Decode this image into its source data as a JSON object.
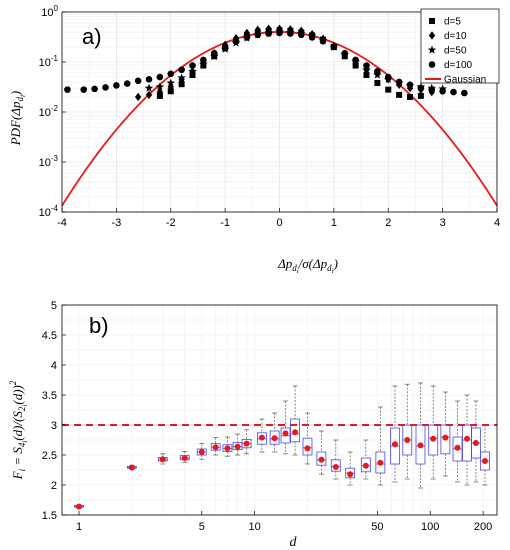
{
  "chart_data": [
    {
      "type": "scatter",
      "panel_label": "a)",
      "xlabel": "Δp_{d_i}/σ(Δp_{d_i})",
      "ylabel": "PDF(Δp_{d_i})",
      "xlim": [
        -4,
        4
      ],
      "ylim": [
        0.0001,
        1
      ],
      "yscale": "log",
      "grid": true,
      "legend_position": "top-right",
      "x_ticks": [
        "-4",
        "-3",
        "-2",
        "-1",
        "0",
        "1",
        "2",
        "3",
        "4"
      ],
      "y_ticks": [
        "10^0",
        "10^-1",
        "10^-2",
        "10^-3",
        "10^-4"
      ],
      "series": [
        {
          "name": "d=5",
          "marker": "square",
          "x": [
            -2.2,
            -2.0,
            -1.8,
            -1.6,
            -1.4,
            -1.2,
            -1.0,
            -0.8,
            -0.6,
            -0.4,
            -0.2,
            0.0,
            0.2,
            0.4,
            0.6,
            0.8,
            1.0,
            1.2,
            1.4,
            1.6,
            1.8,
            2.0,
            2.2,
            2.4,
            2.6
          ],
          "y": [
            0.021,
            0.026,
            0.036,
            0.055,
            0.085,
            0.13,
            0.19,
            0.27,
            0.33,
            0.39,
            0.42,
            0.43,
            0.42,
            0.39,
            0.34,
            0.28,
            0.2,
            0.13,
            0.085,
            0.055,
            0.038,
            0.028,
            0.022,
            0.02,
            0.021
          ]
        },
        {
          "name": "d=10",
          "marker": "diamond",
          "x": [
            -2.6,
            -2.4,
            -2.2,
            -2.0,
            -1.8,
            -1.6,
            -1.4,
            -1.2,
            -1.0,
            -0.8,
            -0.6,
            -0.4,
            -0.2,
            0.0,
            0.2,
            0.4,
            0.6,
            0.8,
            1.0,
            1.2,
            1.4,
            1.6,
            1.8,
            2.0,
            2.2,
            2.4,
            2.6,
            2.8
          ],
          "y": [
            0.02,
            0.022,
            0.025,
            0.032,
            0.045,
            0.065,
            0.1,
            0.15,
            0.22,
            0.3,
            0.38,
            0.44,
            0.46,
            0.46,
            0.45,
            0.42,
            0.36,
            0.29,
            0.21,
            0.14,
            0.095,
            0.07,
            0.06,
            0.045,
            0.035,
            0.03,
            0.028,
            0.025
          ]
        },
        {
          "name": "d=50",
          "marker": "star",
          "x": [
            -2.4,
            -2.2,
            -2.0,
            -1.8,
            -1.6,
            -1.4,
            -1.2,
            -1.0,
            -0.8,
            -0.6,
            -0.4,
            -0.2,
            0.0,
            0.2,
            0.4,
            0.6,
            0.8,
            1.0,
            1.2,
            1.4,
            1.6,
            1.8,
            2.0,
            2.2,
            2.4,
            2.6,
            2.8,
            3.0
          ],
          "y": [
            0.03,
            0.032,
            0.038,
            0.048,
            0.065,
            0.09,
            0.13,
            0.18,
            0.24,
            0.3,
            0.35,
            0.38,
            0.4,
            0.39,
            0.37,
            0.33,
            0.27,
            0.2,
            0.14,
            0.1,
            0.07,
            0.055,
            0.045,
            0.038,
            0.034,
            0.032,
            0.03,
            0.029
          ]
        },
        {
          "name": "d=100",
          "marker": "circle",
          "x": [
            -3.9,
            -3.6,
            -3.4,
            -3.2,
            -3.0,
            -2.8,
            -2.6,
            -2.4,
            -2.2,
            -2.0,
            -1.8,
            -1.6,
            -1.4,
            -1.2,
            -1.0,
            -0.8,
            -0.6,
            -0.4,
            -0.2,
            0.0,
            0.2,
            0.4,
            0.6,
            0.8,
            1.0,
            1.2,
            1.4,
            1.6,
            1.8,
            2.0,
            2.2,
            2.4,
            2.6,
            2.8,
            3.0,
            3.2,
            3.4
          ],
          "y": [
            0.028,
            0.028,
            0.029,
            0.031,
            0.034,
            0.037,
            0.042,
            0.045,
            0.05,
            0.058,
            0.07,
            0.085,
            0.11,
            0.15,
            0.2,
            0.26,
            0.31,
            0.35,
            0.37,
            0.38,
            0.37,
            0.35,
            0.31,
            0.26,
            0.2,
            0.15,
            0.11,
            0.085,
            0.065,
            0.05,
            0.04,
            0.035,
            0.03,
            0.028,
            0.026,
            0.025,
            0.024
          ]
        },
        {
          "name": "Gaussian",
          "line": true,
          "color": "#e8191a",
          "x": [
            -4.0,
            -3.6,
            -3.2,
            -2.8,
            -2.4,
            -2.0,
            -1.6,
            -1.2,
            -0.8,
            -0.4,
            0.0,
            0.4,
            0.8,
            1.2,
            1.6,
            2.0,
            2.4,
            2.8,
            3.2,
            3.6,
            4.0
          ],
          "y": [
            0.000134,
            0.000612,
            0.00238,
            0.00792,
            0.0224,
            0.054,
            0.1109,
            0.1942,
            0.2897,
            0.3683,
            0.3989,
            0.3683,
            0.2897,
            0.1942,
            0.1109,
            0.054,
            0.0224,
            0.00792,
            0.00238,
            0.000612,
            0.000134
          ]
        }
      ]
    },
    {
      "type": "box",
      "panel_label": "b)",
      "xlabel": "d",
      "ylabel": "F_i = S_{4_i}(d)/(S_{2_i}(d))^2",
      "xscale": "log",
      "xlim": [
        0.8,
        240
      ],
      "ylim": [
        1.5,
        5
      ],
      "grid": true,
      "x_ticks": [
        "1",
        "5",
        "10",
        "50",
        "100",
        "200"
      ],
      "y_ticks": [
        "1.5",
        "2",
        "2.5",
        "3",
        "3.5",
        "4",
        "4.5",
        "5"
      ],
      "reference_line": {
        "y": 3,
        "style": "dashed",
        "color": "#e8191a"
      },
      "box_color": "#4a4ae0",
      "mean_marker_color": "#e8191a",
      "boxes": [
        {
          "d": 1,
          "whisker_low": 1.62,
          "q1": 1.63,
          "median": 1.64,
          "q3": 1.66,
          "whisker_high": 1.67,
          "mean": 1.64
        },
        {
          "d": 2,
          "whisker_low": 2.26,
          "q1": 2.28,
          "median": 2.29,
          "q3": 2.31,
          "whisker_high": 2.33,
          "mean": 2.29
        },
        {
          "d": 3,
          "whisker_low": 2.35,
          "q1": 2.4,
          "median": 2.43,
          "q3": 2.46,
          "whisker_high": 2.52,
          "mean": 2.43
        },
        {
          "d": 4,
          "whisker_low": 2.38,
          "q1": 2.42,
          "median": 2.45,
          "q3": 2.49,
          "whisker_high": 2.56,
          "mean": 2.45
        },
        {
          "d": 5,
          "whisker_low": 2.43,
          "q1": 2.5,
          "median": 2.55,
          "q3": 2.6,
          "whisker_high": 2.69,
          "mean": 2.55
        },
        {
          "d": 6,
          "whisker_low": 2.5,
          "q1": 2.58,
          "median": 2.63,
          "q3": 2.69,
          "whisker_high": 2.79,
          "mean": 2.63
        },
        {
          "d": 7,
          "whisker_low": 2.48,
          "q1": 2.56,
          "median": 2.61,
          "q3": 2.67,
          "whisker_high": 2.8,
          "mean": 2.61
        },
        {
          "d": 8,
          "whisker_low": 2.5,
          "q1": 2.59,
          "median": 2.64,
          "q3": 2.71,
          "whisker_high": 2.85,
          "mean": 2.64
        },
        {
          "d": 9,
          "whisker_low": 2.52,
          "q1": 2.62,
          "median": 2.69,
          "q3": 2.76,
          "whisker_high": 2.92,
          "mean": 2.69
        },
        {
          "d": 11,
          "whisker_low": 2.55,
          "q1": 2.68,
          "median": 2.77,
          "q3": 2.87,
          "whisker_high": 3.1,
          "mean": 2.79
        },
        {
          "d": 13,
          "whisker_low": 2.55,
          "q1": 2.68,
          "median": 2.77,
          "q3": 2.9,
          "whisker_high": 3.2,
          "mean": 2.78
        },
        {
          "d": 15,
          "whisker_low": 2.52,
          "q1": 2.7,
          "median": 2.82,
          "q3": 2.95,
          "whisker_high": 3.4,
          "mean": 2.86
        },
        {
          "d": 17,
          "whisker_low": 2.5,
          "q1": 2.72,
          "median": 2.85,
          "q3": 3.1,
          "whisker_high": 3.65,
          "mean": 2.88
        },
        {
          "d": 20,
          "whisker_low": 2.35,
          "q1": 2.5,
          "median": 2.62,
          "q3": 2.78,
          "whisker_high": 3.2,
          "mean": 2.61
        },
        {
          "d": 24,
          "whisker_low": 2.18,
          "q1": 2.33,
          "median": 2.42,
          "q3": 2.55,
          "whisker_high": 2.9,
          "mean": 2.42
        },
        {
          "d": 29,
          "whisker_low": 2.1,
          "q1": 2.23,
          "median": 2.31,
          "q3": 2.42,
          "whisker_high": 2.75,
          "mean": 2.3
        },
        {
          "d": 35,
          "whisker_low": 2.0,
          "q1": 2.12,
          "median": 2.2,
          "q3": 2.28,
          "whisker_high": 2.55,
          "mean": 2.18
        },
        {
          "d": 43,
          "whisker_low": 2.1,
          "q1": 2.22,
          "median": 2.32,
          "q3": 2.45,
          "whisker_high": 2.75,
          "mean": 2.32
        },
        {
          "d": 52,
          "whisker_low": 2.0,
          "q1": 2.2,
          "median": 2.35,
          "q3": 2.55,
          "whisker_high": 3.3,
          "mean": 2.37
        },
        {
          "d": 63,
          "whisker_low": 2.05,
          "q1": 2.35,
          "median": 2.65,
          "q3": 2.95,
          "whisker_high": 3.65,
          "mean": 2.68
        },
        {
          "d": 74,
          "whisker_low": 2.1,
          "q1": 2.5,
          "median": 2.75,
          "q3": 3.0,
          "whisker_high": 3.68,
          "mean": 2.75
        },
        {
          "d": 88,
          "whisker_low": 1.95,
          "q1": 2.35,
          "median": 2.65,
          "q3": 3.0,
          "whisker_high": 3.7,
          "mean": 2.66
        },
        {
          "d": 104,
          "whisker_low": 2.1,
          "q1": 2.5,
          "median": 2.78,
          "q3": 3.0,
          "whisker_high": 3.65,
          "mean": 2.77
        },
        {
          "d": 122,
          "whisker_low": 2.15,
          "q1": 2.52,
          "median": 2.8,
          "q3": 3.0,
          "whisker_high": 3.55,
          "mean": 2.79
        },
        {
          "d": 143,
          "whisker_low": 2.05,
          "q1": 2.4,
          "median": 2.6,
          "q3": 2.8,
          "whisker_high": 3.4,
          "mean": 2.62
        },
        {
          "d": 162,
          "whisker_low": 2.0,
          "q1": 2.4,
          "median": 2.75,
          "q3": 3.0,
          "whisker_high": 3.5,
          "mean": 2.77
        },
        {
          "d": 182,
          "whisker_low": 2.05,
          "q1": 2.45,
          "median": 2.7,
          "q3": 2.95,
          "whisker_high": 3.4,
          "mean": 2.7
        },
        {
          "d": 205,
          "whisker_low": 2.0,
          "q1": 2.25,
          "median": 2.4,
          "q3": 2.55,
          "whisker_high": 3.0,
          "mean": 2.4
        }
      ]
    }
  ]
}
